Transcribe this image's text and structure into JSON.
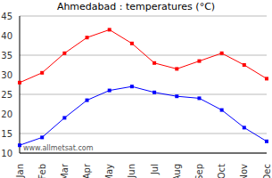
{
  "chart_data": {
    "type": "line",
    "title": "Ahmedabad : temperatures (°C)",
    "categories": [
      "Jan",
      "Feb",
      "Mar",
      "Apr",
      "May",
      "Jun",
      "Jul",
      "Aug",
      "Sep",
      "Oct",
      "Nov",
      "Dec"
    ],
    "series": [
      {
        "color": "#ff0000",
        "marker": "square",
        "values": [
          28,
          30.5,
          35.5,
          39.5,
          41.5,
          38,
          33,
          31.5,
          33.5,
          35.5,
          32.5,
          29
        ]
      },
      {
        "color": "#0000ff",
        "marker": "square",
        "values": [
          12,
          14,
          19,
          23.5,
          26,
          27,
          25.5,
          24.5,
          24,
          21,
          16.5,
          13
        ]
      }
    ],
    "ylim": [
      10,
      45
    ],
    "yticks": [
      10,
      15,
      20,
      25,
      30,
      35,
      40,
      45
    ],
    "grid": true,
    "annotations": [
      "www.allmetsat.com"
    ]
  }
}
